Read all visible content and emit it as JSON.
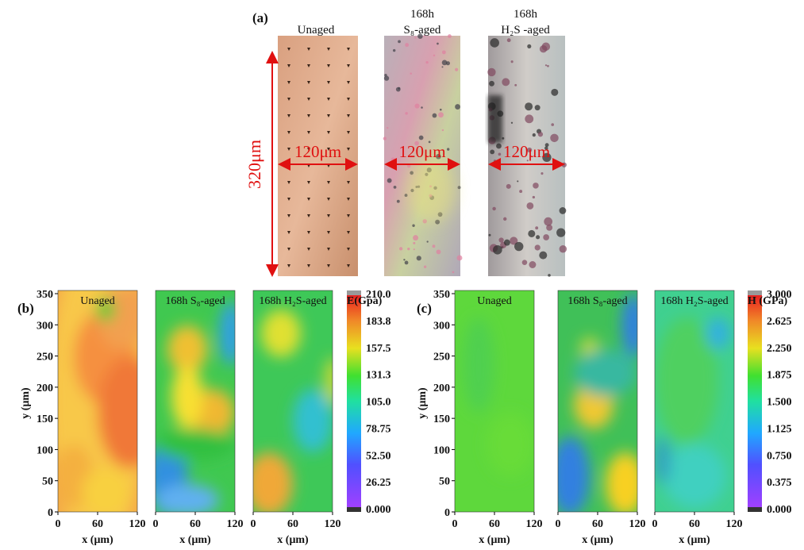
{
  "panel_a": {
    "label": "(a)",
    "height_label": "320μm",
    "samples": [
      {
        "title": [
          "Unaged"
        ],
        "width_label": "120μm"
      },
      {
        "title": [
          "168h",
          "S₈-aged"
        ],
        "width_label": "120μm"
      },
      {
        "title": [
          "168h",
          "H₂S -aged"
        ],
        "width_label": "120μm"
      }
    ]
  },
  "panel_b": {
    "label": "(b)",
    "maps": [
      {
        "title": "Unaged"
      },
      {
        "title": "168h S₈-aged"
      },
      {
        "title": "168h H₂S-aged"
      }
    ],
    "x_axis_label": "x (μm)",
    "y_axis_label": "y (μm)",
    "xticks": [
      "0",
      "60",
      "120"
    ],
    "yticks": [
      "0",
      "50",
      "100",
      "150",
      "200",
      "250",
      "300",
      "350"
    ],
    "colorbar": {
      "title": "E(Gpa)",
      "ticks": [
        "0.000",
        "26.25",
        "52.50",
        "78.75",
        "105.0",
        "131.3",
        "157.5",
        "183.8",
        "210.0"
      ]
    }
  },
  "panel_c": {
    "label": "(c)",
    "maps": [
      {
        "title": "Unaged"
      },
      {
        "title": "168h S₈-aged"
      },
      {
        "title": "168h H₂S-aged"
      }
    ],
    "x_axis_label": "x (μm)",
    "y_axis_label": "y (μm)",
    "xticks": [
      "0",
      "60",
      "120"
    ],
    "yticks": [
      "0",
      "50",
      "100",
      "150",
      "200",
      "250",
      "300",
      "350"
    ],
    "colorbar": {
      "title": "H (GPa)",
      "ticks": [
        "0.000",
        "0.375",
        "0.750",
        "1.125",
        "1.500",
        "1.875",
        "2.250",
        "2.625",
        "3.000"
      ]
    }
  }
}
